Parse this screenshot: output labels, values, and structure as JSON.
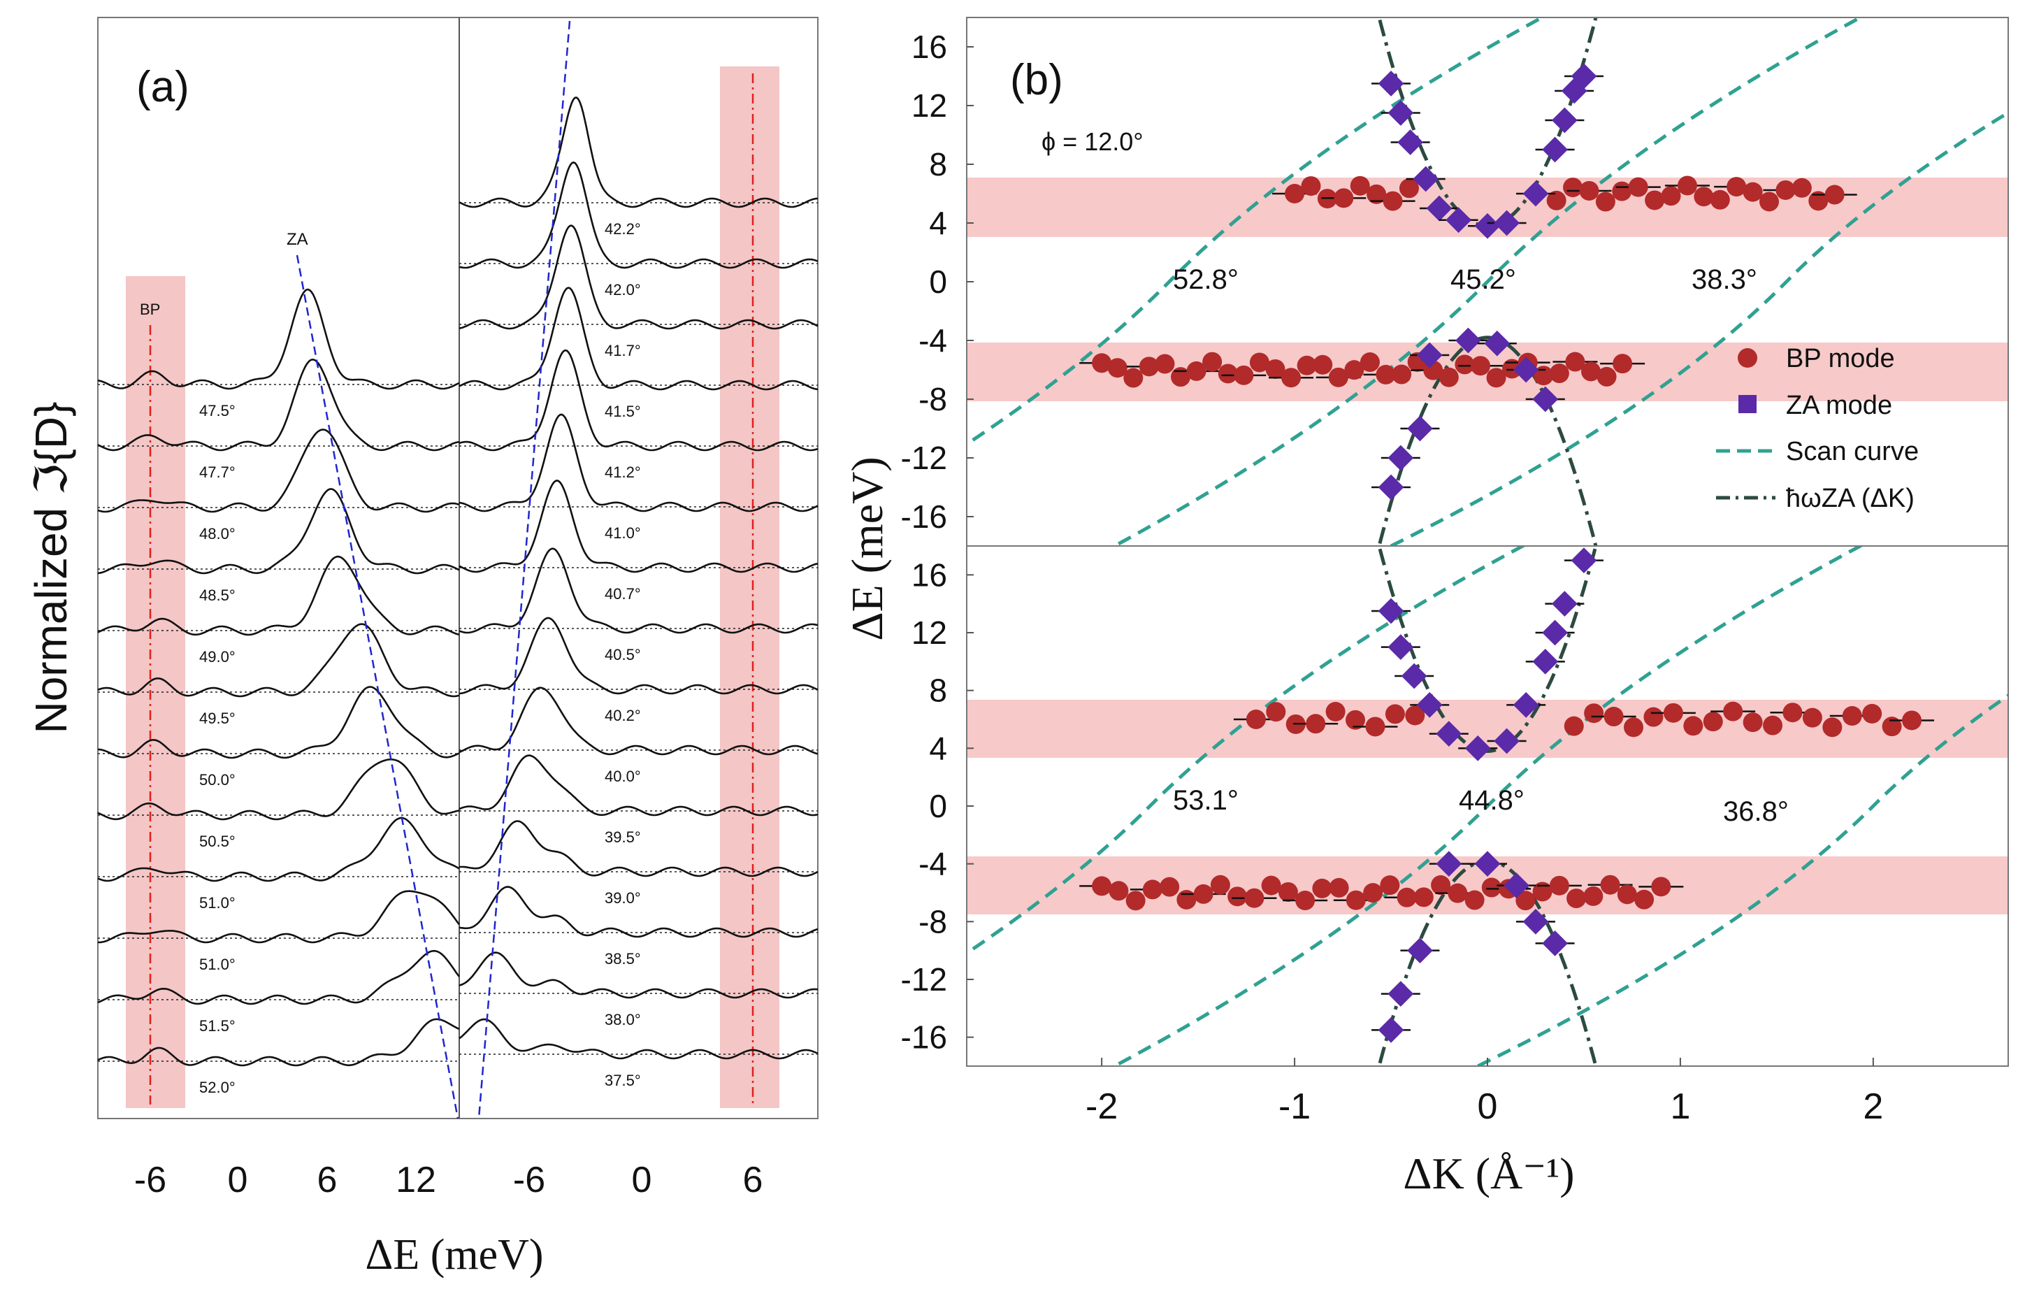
{
  "chart_data": [
    {
      "panel_label": "(a)",
      "type": "line",
      "ylabel": "Normalized ℑ{D}",
      "xlabel": "ΔE (meV)",
      "bp_label": "BP",
      "za_label": "ZA",
      "colors": {
        "curve": "#111111",
        "band": "#f4c6c6",
        "bp_line": "#e0201e",
        "za_line": "#2026d0",
        "baseline": "#222222"
      },
      "left_subplot": {
        "xticks": [
          -6,
          0,
          6,
          12
        ],
        "xlim": [
          -10,
          15
        ],
        "traces": [
          {
            "angle": "47.5°",
            "za_peak_meV": 4.5,
            "bp_amp": 0.1
          },
          {
            "angle": "47.7°",
            "za_peak_meV": 5.0,
            "bp_amp": 0.1
          },
          {
            "angle": "48.0°",
            "za_peak_meV": 5.5,
            "bp_amp": 0.08
          },
          {
            "angle": "48.5°",
            "za_peak_meV": 6.0,
            "bp_amp": 0.08
          },
          {
            "angle": "49.0°",
            "za_peak_meV": 6.8,
            "bp_amp": 0.08
          },
          {
            "angle": "49.5°",
            "za_peak_meV": 8.0,
            "bp_amp": 0.08
          },
          {
            "angle": "50.0°",
            "za_peak_meV": 9.0,
            "bp_amp": 0.06
          },
          {
            "angle": "50.5°",
            "za_peak_meV": 10.0,
            "bp_amp": 0.06
          },
          {
            "angle": "51.0°",
            "za_peak_meV": 11.0,
            "bp_amp": 0.06
          },
          {
            "angle": "51.0°",
            "za_peak_meV": 12.0,
            "bp_amp": 0.06
          },
          {
            "angle": "51.5°",
            "za_peak_meV": 13.0,
            "bp_amp": 0.06
          },
          {
            "angle": "52.0°",
            "za_peak_meV": 14.0,
            "bp_amp": 0.06
          }
        ]
      },
      "right_subplot": {
        "xticks": [
          -6,
          0,
          6
        ],
        "xlim": [
          -13,
          12
        ],
        "traces": [
          {
            "angle": "42.2°",
            "za_peak_meV": -4.8
          },
          {
            "angle": "42.0°",
            "za_peak_meV": -5.0
          },
          {
            "angle": "41.7°",
            "za_peak_meV": -5.2
          },
          {
            "angle": "41.5°",
            "za_peak_meV": -5.4
          },
          {
            "angle": "41.2°",
            "za_peak_meV": -5.6
          },
          {
            "angle": "41.0°",
            "za_peak_meV": -5.9
          },
          {
            "angle": "40.7°",
            "za_peak_meV": -6.2
          },
          {
            "angle": "40.5°",
            "za_peak_meV": -6.5
          },
          {
            "angle": "40.2°",
            "za_peak_meV": -6.8
          },
          {
            "angle": "40.0°",
            "za_peak_meV": -7.3
          },
          {
            "angle": "39.5°",
            "za_peak_meV": -8.0
          },
          {
            "angle": "39.0°",
            "za_peak_meV": -8.8
          },
          {
            "angle": "38.5°",
            "za_peak_meV": -9.5
          },
          {
            "angle": "38.0°",
            "za_peak_meV": -10.5
          },
          {
            "angle": "37.5°",
            "za_peak_meV": -11.5
          }
        ]
      }
    },
    {
      "panel_label": "(b)",
      "type": "scatter",
      "xlabel": "ΔK (Å⁻¹)",
      "ylabel": "ΔE (meV)",
      "xlim": [
        -2.7,
        2.7
      ],
      "xticks": [
        -2,
        -1,
        0,
        1,
        2
      ],
      "ylim": [
        -18,
        18
      ],
      "yticks": [
        16,
        12,
        8,
        4,
        0,
        -4,
        -8,
        -12,
        -16
      ],
      "phi_label": "ϕ = 12.0°",
      "colors": {
        "bp": "#b22a2a",
        "za": "#5a2aa8",
        "scan": "#2fa192",
        "dispersion": "#2c4a40",
        "band": "#f7c9c9"
      },
      "legend": {
        "position": "right",
        "entries": [
          "BP mode",
          "ZA mode",
          "Scan curve",
          "ħωZA (ΔK)"
        ]
      },
      "top_subplot": {
        "scan_angles": [
          "52.8°",
          "45.2°",
          "38.3°"
        ],
        "bp_upper": {
          "energy_meV": 6,
          "x_range": [
            -1.0,
            1.8
          ]
        },
        "bp_lower": {
          "energy_meV": -6,
          "x_range": [
            -2.0,
            0.7
          ]
        },
        "za_points": [
          [
            -0.5,
            13.5
          ],
          [
            -0.45,
            11.5
          ],
          [
            -0.4,
            9.5
          ],
          [
            -0.32,
            7
          ],
          [
            -0.25,
            5
          ],
          [
            -0.15,
            4.2
          ],
          [
            0,
            3.8
          ],
          [
            0.1,
            4
          ],
          [
            0.25,
            6
          ],
          [
            0.35,
            9
          ],
          [
            0.4,
            11
          ],
          [
            0.45,
            13
          ],
          [
            0.5,
            14
          ],
          [
            -0.3,
            -5
          ],
          [
            -0.1,
            -4
          ],
          [
            0.05,
            -4.2
          ],
          [
            0.2,
            -6
          ],
          [
            0.3,
            -8
          ],
          [
            -0.35,
            -10
          ],
          [
            -0.45,
            -12
          ],
          [
            -0.5,
            -14
          ]
        ]
      },
      "bottom_subplot": {
        "scan_angles": [
          "53.1°",
          "44.8°",
          "36.8°"
        ],
        "bp_upper": {
          "energy_meV": 6,
          "x_range": [
            -1.2,
            2.2
          ]
        },
        "bp_lower": {
          "energy_meV": -6,
          "x_range": [
            -2.0,
            0.9
          ]
        },
        "za_points": [
          [
            -0.5,
            13.5
          ],
          [
            -0.45,
            11
          ],
          [
            -0.38,
            9
          ],
          [
            -0.3,
            7
          ],
          [
            -0.2,
            5
          ],
          [
            -0.05,
            4
          ],
          [
            0.1,
            4.5
          ],
          [
            0.2,
            7
          ],
          [
            0.3,
            10
          ],
          [
            0.35,
            12
          ],
          [
            0.4,
            14
          ],
          [
            0.5,
            17
          ],
          [
            -0.2,
            -4
          ],
          [
            0,
            -4
          ],
          [
            0.15,
            -5.5
          ],
          [
            0.25,
            -8
          ],
          [
            0.35,
            -9.5
          ],
          [
            -0.35,
            -10
          ],
          [
            -0.45,
            -13
          ],
          [
            -0.5,
            -15.5
          ]
        ]
      }
    }
  ]
}
